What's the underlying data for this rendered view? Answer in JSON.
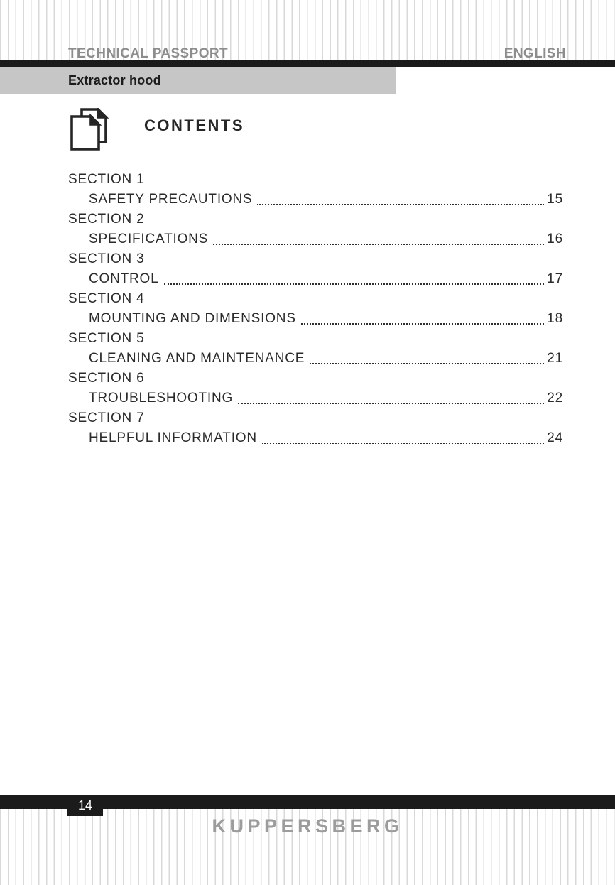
{
  "header": {
    "title": "TECHNICAL PASSPORT",
    "language": "ENGLISH",
    "product": "Extractor hood"
  },
  "contents": {
    "heading": "CONTENTS",
    "icon": "pages-icon"
  },
  "toc": {
    "sections": [
      {
        "label": "SECTION 1",
        "title": "SAFETY PRECAUTIONS",
        "page": "15"
      },
      {
        "label": "SECTION 2",
        "title": "SPECIFICATIONS",
        "page": "16"
      },
      {
        "label": "SECTION 3",
        "title": "CONTROL",
        "page": "17"
      },
      {
        "label": "SECTION 4",
        "title": "MOUNTING AND DIMENSIONS",
        "page": "18"
      },
      {
        "label": "SECTION 5",
        "title": "CLEANING AND MAINTENANCE",
        "page": "21"
      },
      {
        "label": "SECTION 6",
        "title": "TROUBLESHOOTING",
        "page": "22"
      },
      {
        "label": "SECTION 7",
        "title": "HELPFUL INFORMATION",
        "page": "24"
      }
    ]
  },
  "footer": {
    "page_number": "14",
    "brand": "KUPPERSBERG"
  },
  "colors": {
    "bar_black": "#1b1b1b",
    "bar_gray": "#c6c6c6",
    "header_text": "#8d8d8d",
    "body_text": "#2b2b2b",
    "brand_text": "#9c9c9c",
    "stripe": "#d9d9d9"
  }
}
